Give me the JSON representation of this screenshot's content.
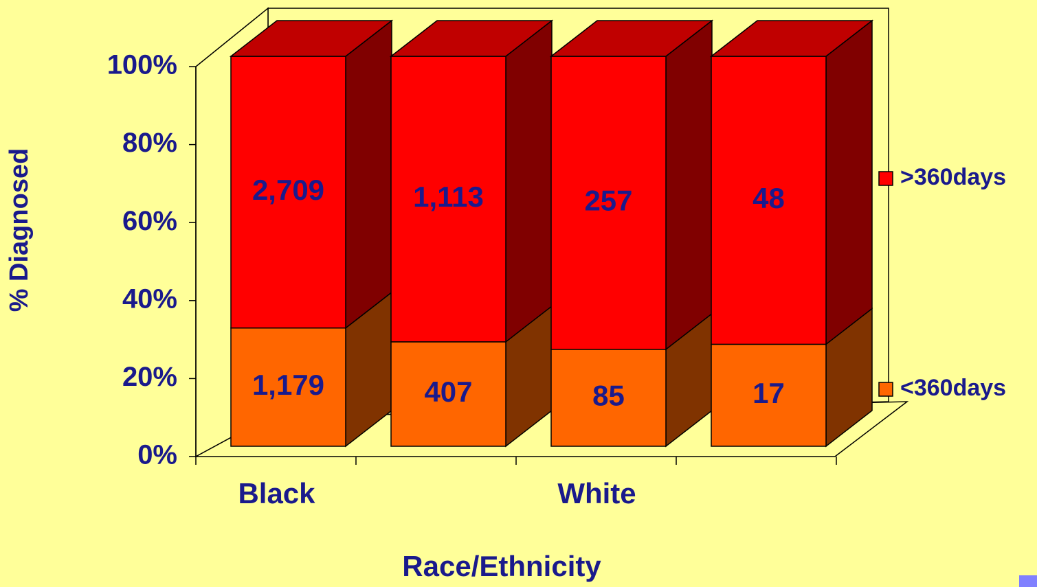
{
  "chart_data": {
    "type": "bar",
    "stacking": "percent",
    "y_label": "% Diagnosed",
    "x_label": "Race/Ethnicity",
    "categories": [
      "Black",
      null,
      "White",
      null
    ],
    "series": [
      {
        "name": "<360days",
        "color": "#ff6600",
        "side_color": "#803300",
        "values": [
          1179,
          407,
          85,
          17
        ],
        "value_labels": [
          "1,179",
          "407",
          "85",
          "17"
        ]
      },
      {
        "name": ">360days",
        "color": "#ff0000",
        "side_color": "#800000",
        "top_color": "#c00000",
        "values": [
          2709,
          1113,
          257,
          48
        ],
        "value_labels": [
          "2,709",
          "1,113",
          "257",
          "48"
        ]
      }
    ],
    "ylim": [
      0,
      100
    ],
    "yticks": [
      {
        "value": 0,
        "label": "0%"
      },
      {
        "value": 20,
        "label": "20%"
      },
      {
        "value": 40,
        "label": "40%"
      },
      {
        "value": 60,
        "label": "60%"
      },
      {
        "value": 80,
        "label": "80%"
      },
      {
        "value": 100,
        "label": "100%"
      }
    ]
  }
}
